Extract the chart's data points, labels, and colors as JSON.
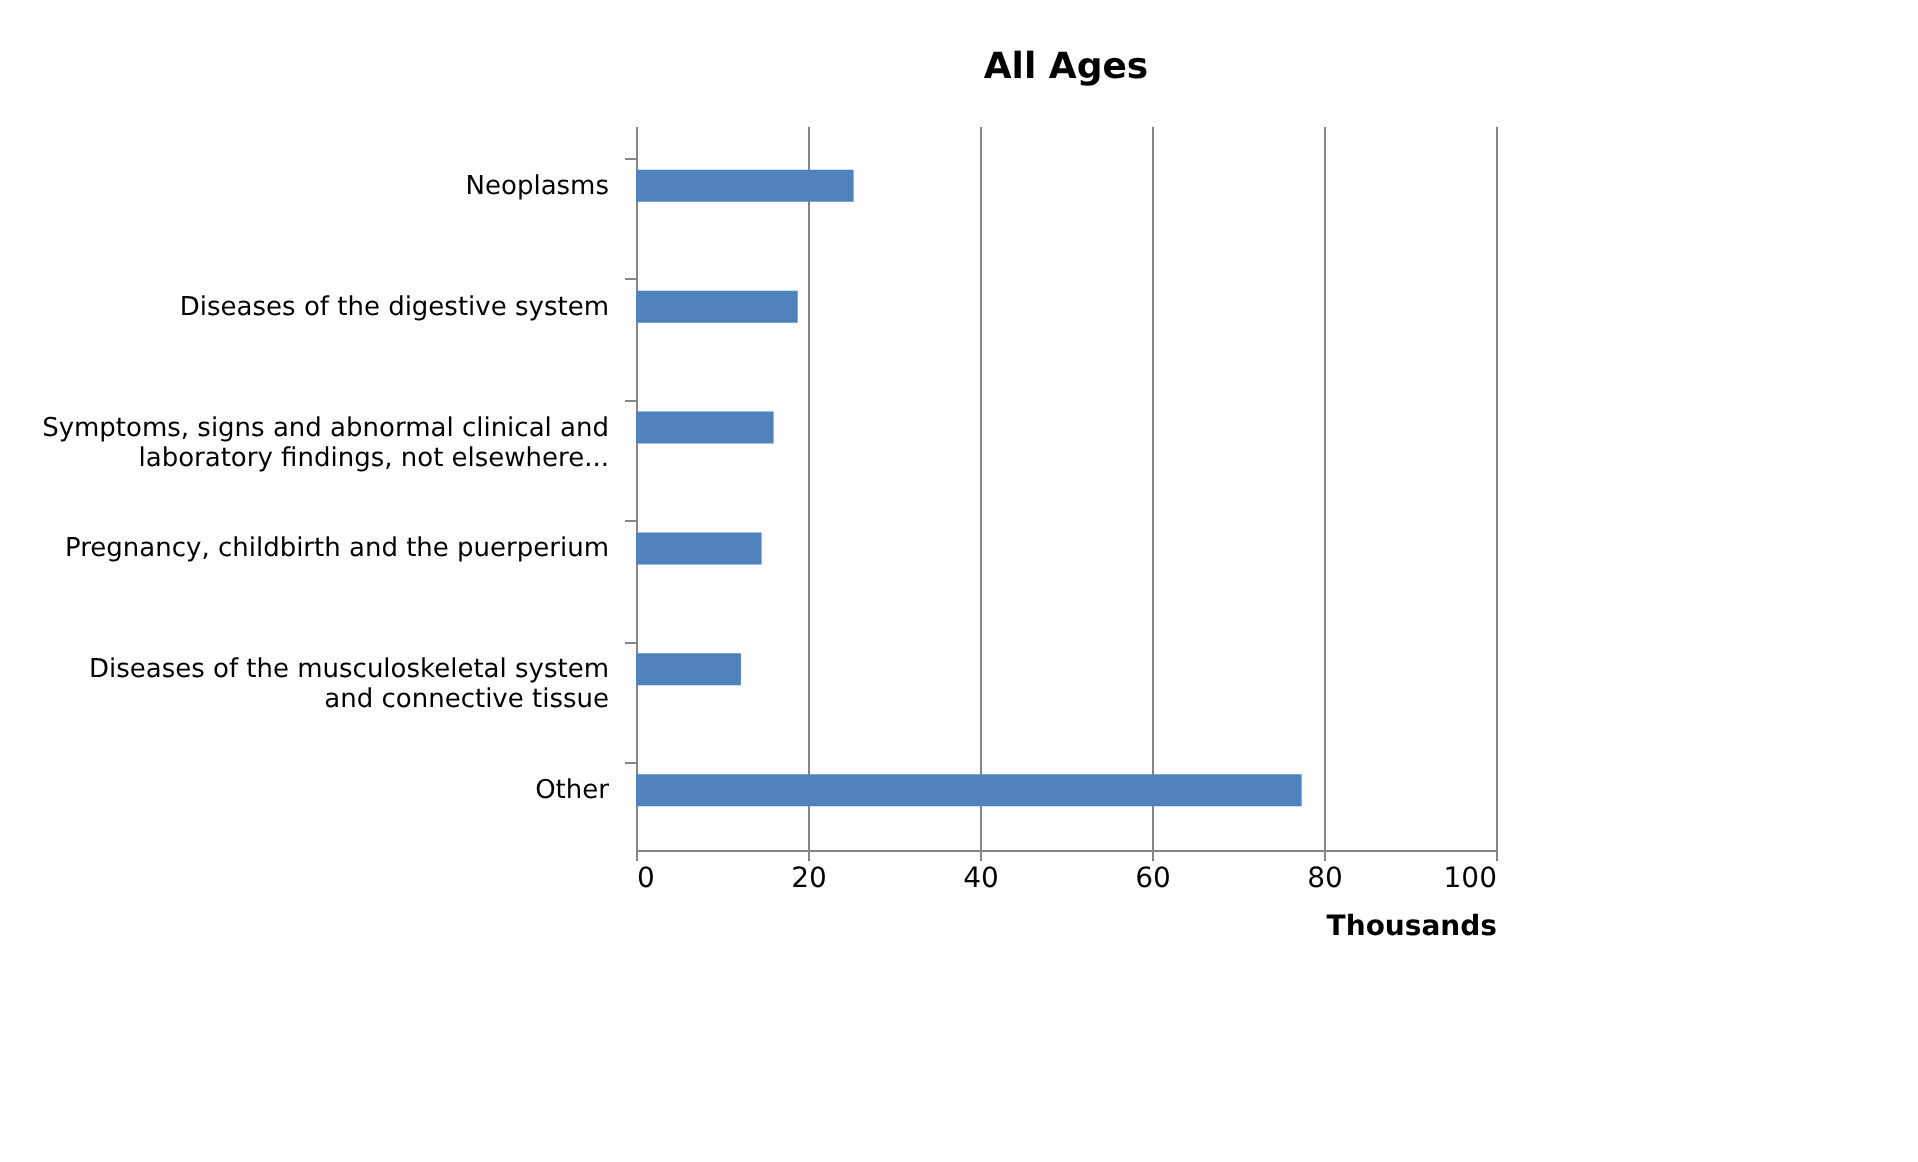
{
  "chart_data": {
    "type": "bar",
    "orientation": "horizontal",
    "title": "All Ages",
    "xlabel": "Thousands",
    "categories": [
      "Neoplasms",
      "Diseases of the digestive system",
      "Symptoms, signs and abnormal clinical and\nlaboratory findings, not elsewhere...",
      "Pregnancy, childbirth and the puerperium",
      "Diseases of the musculoskeletal system\nand connective tissue",
      "Other"
    ],
    "values": [
      25.3,
      18.8,
      16.0,
      14.6,
      12.2,
      77.4
    ],
    "color": "#4f81bd",
    "xlim": [
      0,
      100
    ],
    "xticks": [
      0,
      20,
      40,
      60,
      80,
      100
    ],
    "grid": "x"
  }
}
